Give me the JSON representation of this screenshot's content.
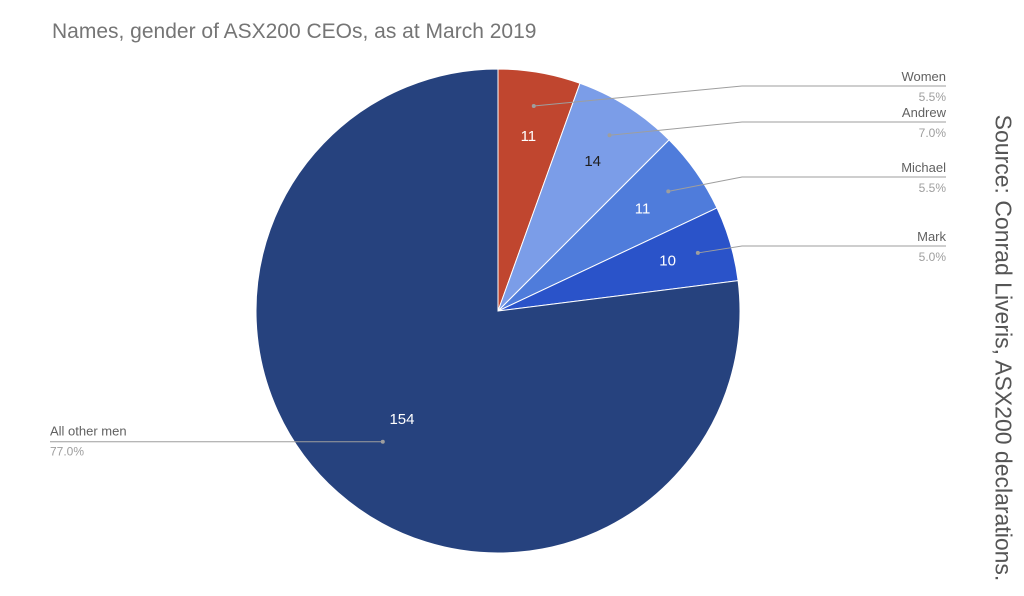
{
  "chart_data": {
    "type": "pie",
    "title": "Names, gender of ASX200 CEOs, as at March 2019",
    "slices": [
      {
        "label": "Women",
        "value": 11,
        "value_label": "11",
        "percent_label": "5.5%",
        "color": "#c0462f",
        "value_color": "#ffffff"
      },
      {
        "label": "Andrew",
        "value": 14,
        "value_label": "14",
        "percent_label": "7.0%",
        "color": "#7b9de8",
        "value_color": "#1f1f1f"
      },
      {
        "label": "Michael",
        "value": 11,
        "value_label": "11",
        "percent_label": "5.5%",
        "color": "#4f7cdb",
        "value_color": "#ffffff"
      },
      {
        "label": "Mark",
        "value": 10,
        "value_label": "10",
        "percent_label": "5.0%",
        "color": "#2a53c9",
        "value_color": "#ffffff"
      },
      {
        "label": "All other men",
        "value": 154,
        "value_label": "154",
        "percent_label": "77.0%",
        "color": "#26427e",
        "value_color": "#ffffff"
      }
    ],
    "source": "Source: Conrad Liveris, ASX200 declarations."
  }
}
